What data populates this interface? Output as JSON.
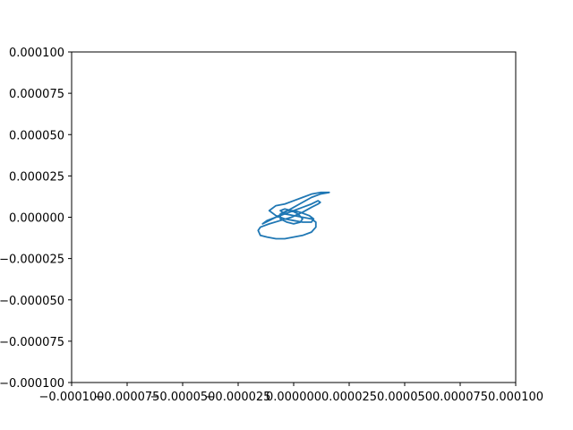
{
  "chart_data": {
    "type": "line",
    "title": "",
    "xlabel": "",
    "ylabel": "",
    "xlim": [
      -0.0001,
      0.0001
    ],
    "ylim": [
      -0.0001,
      0.0001
    ],
    "grid": false,
    "x_ticks": [
      -0.0001,
      -7.5e-05,
      -5e-05,
      -2.5e-05,
      0.0,
      2.5e-05,
      5e-05,
      7.5e-05,
      0.0001
    ],
    "x_tick_labels": [
      "−0.000100",
      "−0.000075",
      "−0.000050",
      "−0.000025",
      "0.000000",
      "0.000025",
      "0.000050",
      "0.000075",
      "0.000100"
    ],
    "y_ticks": [
      0.0001,
      7.5e-05,
      5e-05,
      2.5e-05,
      0.0,
      -2.5e-05,
      -5e-05,
      -7.5e-05,
      -0.0001
    ],
    "y_tick_labels": [
      "0.000100",
      "0.000075",
      "0.000050",
      "0.000025",
      "0.000000",
      "−0.000025",
      "−0.000050",
      "−0.000075",
      "−0.000100"
    ],
    "series": [
      {
        "color": "#1f77b4",
        "x": [
          1.6e-05,
          1.5e-05,
          1.2e-05,
          8e-06,
          4e-06,
          0.0,
          -4e-06,
          -8e-06,
          -1.1e-05,
          -8e-06,
          -4e-06,
          0.0,
          4e-06,
          8e-06,
          9e-06,
          7e-06,
          3e-06,
          0.0,
          -3e-06,
          -6e-06,
          -6e-06,
          -3e-06,
          0.0,
          3e-06,
          4e-06,
          2e-06,
          -1e-06,
          -4e-06,
          -6e-06,
          -4e-06,
          0.0,
          4e-06,
          8e-06,
          1e-05,
          1e-05,
          8e-06,
          4e-06,
          0.0,
          -4e-06,
          -8e-06,
          -1.2e-05,
          -1.5e-05,
          -1.6e-05,
          -1.5e-05,
          -1.1e-05,
          -6e-06,
          -1e-06,
          4e-06,
          8e-06,
          1.1e-05,
          1.2e-05,
          1.1e-05,
          8e-06,
          4e-06,
          0.0,
          -4e-06,
          -8e-06,
          -1.1e-05,
          -1.4e-05,
          -1.2e-05,
          -8e-06,
          -4e-06,
          0.0,
          4e-06,
          8e-06,
          1.2e-05,
          1.6e-05
        ],
        "y": [
          1.5e-05,
          1.5e-05,
          1.5e-05,
          1.4e-05,
          1.2e-05,
          1e-05,
          8e-06,
          7e-06,
          4e-06,
          1e-06,
          -1e-06,
          -2e-06,
          -3e-06,
          -3e-06,
          -1e-06,
          1e-06,
          3e-06,
          4e-06,
          4e-06,
          2e-06,
          -1e-06,
          -3e-06,
          -4e-06,
          -3e-06,
          -1e-06,
          2e-06,
          4e-06,
          5e-06,
          4e-06,
          2e-06,
          1e-06,
          0.0,
          -1e-06,
          -3e-06,
          -6e-06,
          -9e-06,
          -1.1e-05,
          -1.2e-05,
          -1.3e-05,
          -1.3e-05,
          -1.2e-05,
          -1.1e-05,
          -8e-06,
          -6e-06,
          -4e-06,
          -2e-06,
          0.0,
          3e-06,
          6e-06,
          8e-06,
          9e-06,
          1e-05,
          8e-06,
          6e-06,
          4e-06,
          2e-06,
          0.0,
          -2e-06,
          -4e-06,
          -2e-06,
          0.0,
          3e-06,
          6e-06,
          9e-06,
          1.2e-05,
          1.4e-05,
          1.5e-05
        ]
      }
    ]
  }
}
